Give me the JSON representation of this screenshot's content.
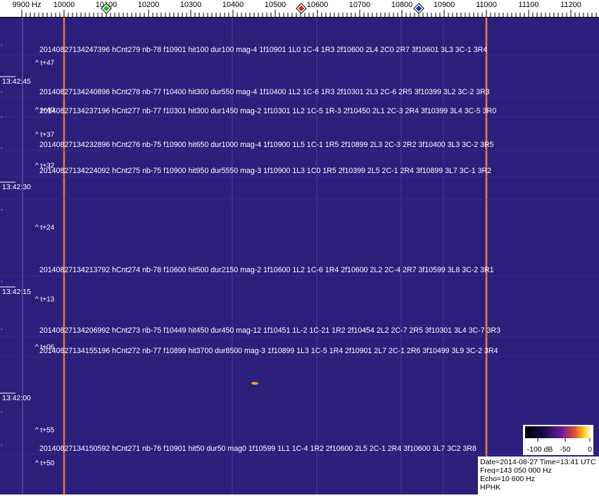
{
  "axis": {
    "labels": [
      "9900 Hz",
      "10000",
      "10100",
      "10200",
      "10300",
      "10400",
      "10500",
      "10600",
      "10700",
      "10800",
      "10900",
      "11000",
      "11100",
      "11200"
    ]
  },
  "decodes": [
    "20140827134247396 hCnt279 nb-78 f10901 hit100 dur100 mag-4 1f10901 1L0 1C-4 1R3 2f10600 2L4 2C0 2R7 3f10601 3L3 3C-1 3R4",
    "20140827134240896 hCnt278 nb-77 f10400 hit300 dur550 mag-4 1f10400 1L2 1C-6 1R3 2f10301 2L3 2C-6 2R5 3f10399 3L2 3C-2 3R3",
    "20140827134237196 hCnt277 nb-77 f10301 hit300 dur1450 mag-2 1f10301 1L2 1C-5 1R-3 2f10450 2L1 2C-3 2R4 3f10399 3L4 3C-5 3R0",
    "20140827134232896 hCnt276 nb-75 f10900 hit650 dur1000 mag-4 1f10900 1L5 1C-1 1R5 2f10899 2L3 2C-3 2R2 3f10400 3L3 3C-2 3R5",
    "20140827134224092 hCnt275 nb-75 f10900 hit950 dur5550 mag-3 1f10900 1L3 1C0 1R5 2f10399 2L5 2C-1 2R4 3f10899 3L7 3C-1 3R2",
    "20140827134213792 hCnt274 nb-78 f10600 hit500 dur2150 mag-2 1f10600 1L2 1C-6 1R4 2f10600 2L2 2C-4 2R7 3f10599 3L8 3C-2 3R1",
    "20140827134206992 hCnt273 nb-75 f10449 hit450 dur450 mag-12 1f10451 1L-2 1C-21 1R2 2f10454 2L2 2C-7 2R5 3f10301 3L4 3C-7 3R3",
    "20140827134155196 hCnt272 nb-77 f10899 hit3700 dur8500 mag-3 1f10899 1L3 1C-5 1R4 2f10901 2L7 2C-1 2R6 3f10499 3L9 3C-2 3R4",
    "20140827134150592 hCnt271 nb-76 f10901 hit50 dur50 mag0 1f10599 1L1 1C-4 1R2 2f10600 2L5 2C-1 2R4 3f10600 3L7 3C2 3R8"
  ],
  "offsets": [
    "^ t+47",
    "^ t+40",
    "^ t+37",
    "^ t+32",
    "^ t+24",
    "^ t+13",
    "^ t+06",
    "^ t+55",
    "^ t+50"
  ],
  "times": [
    "13:42:45",
    "13:42:30",
    "13:42:15",
    "13:42:00"
  ],
  "colorbar": {
    "labels": [
      "-100 dB",
      "-50",
      "0"
    ]
  },
  "info": [
    "Date=2014-08-27 Time=13:41 UTC",
    "Freq=143 050 000 Hz",
    "Echo=10 600 Hz",
    "HPHK"
  ]
}
